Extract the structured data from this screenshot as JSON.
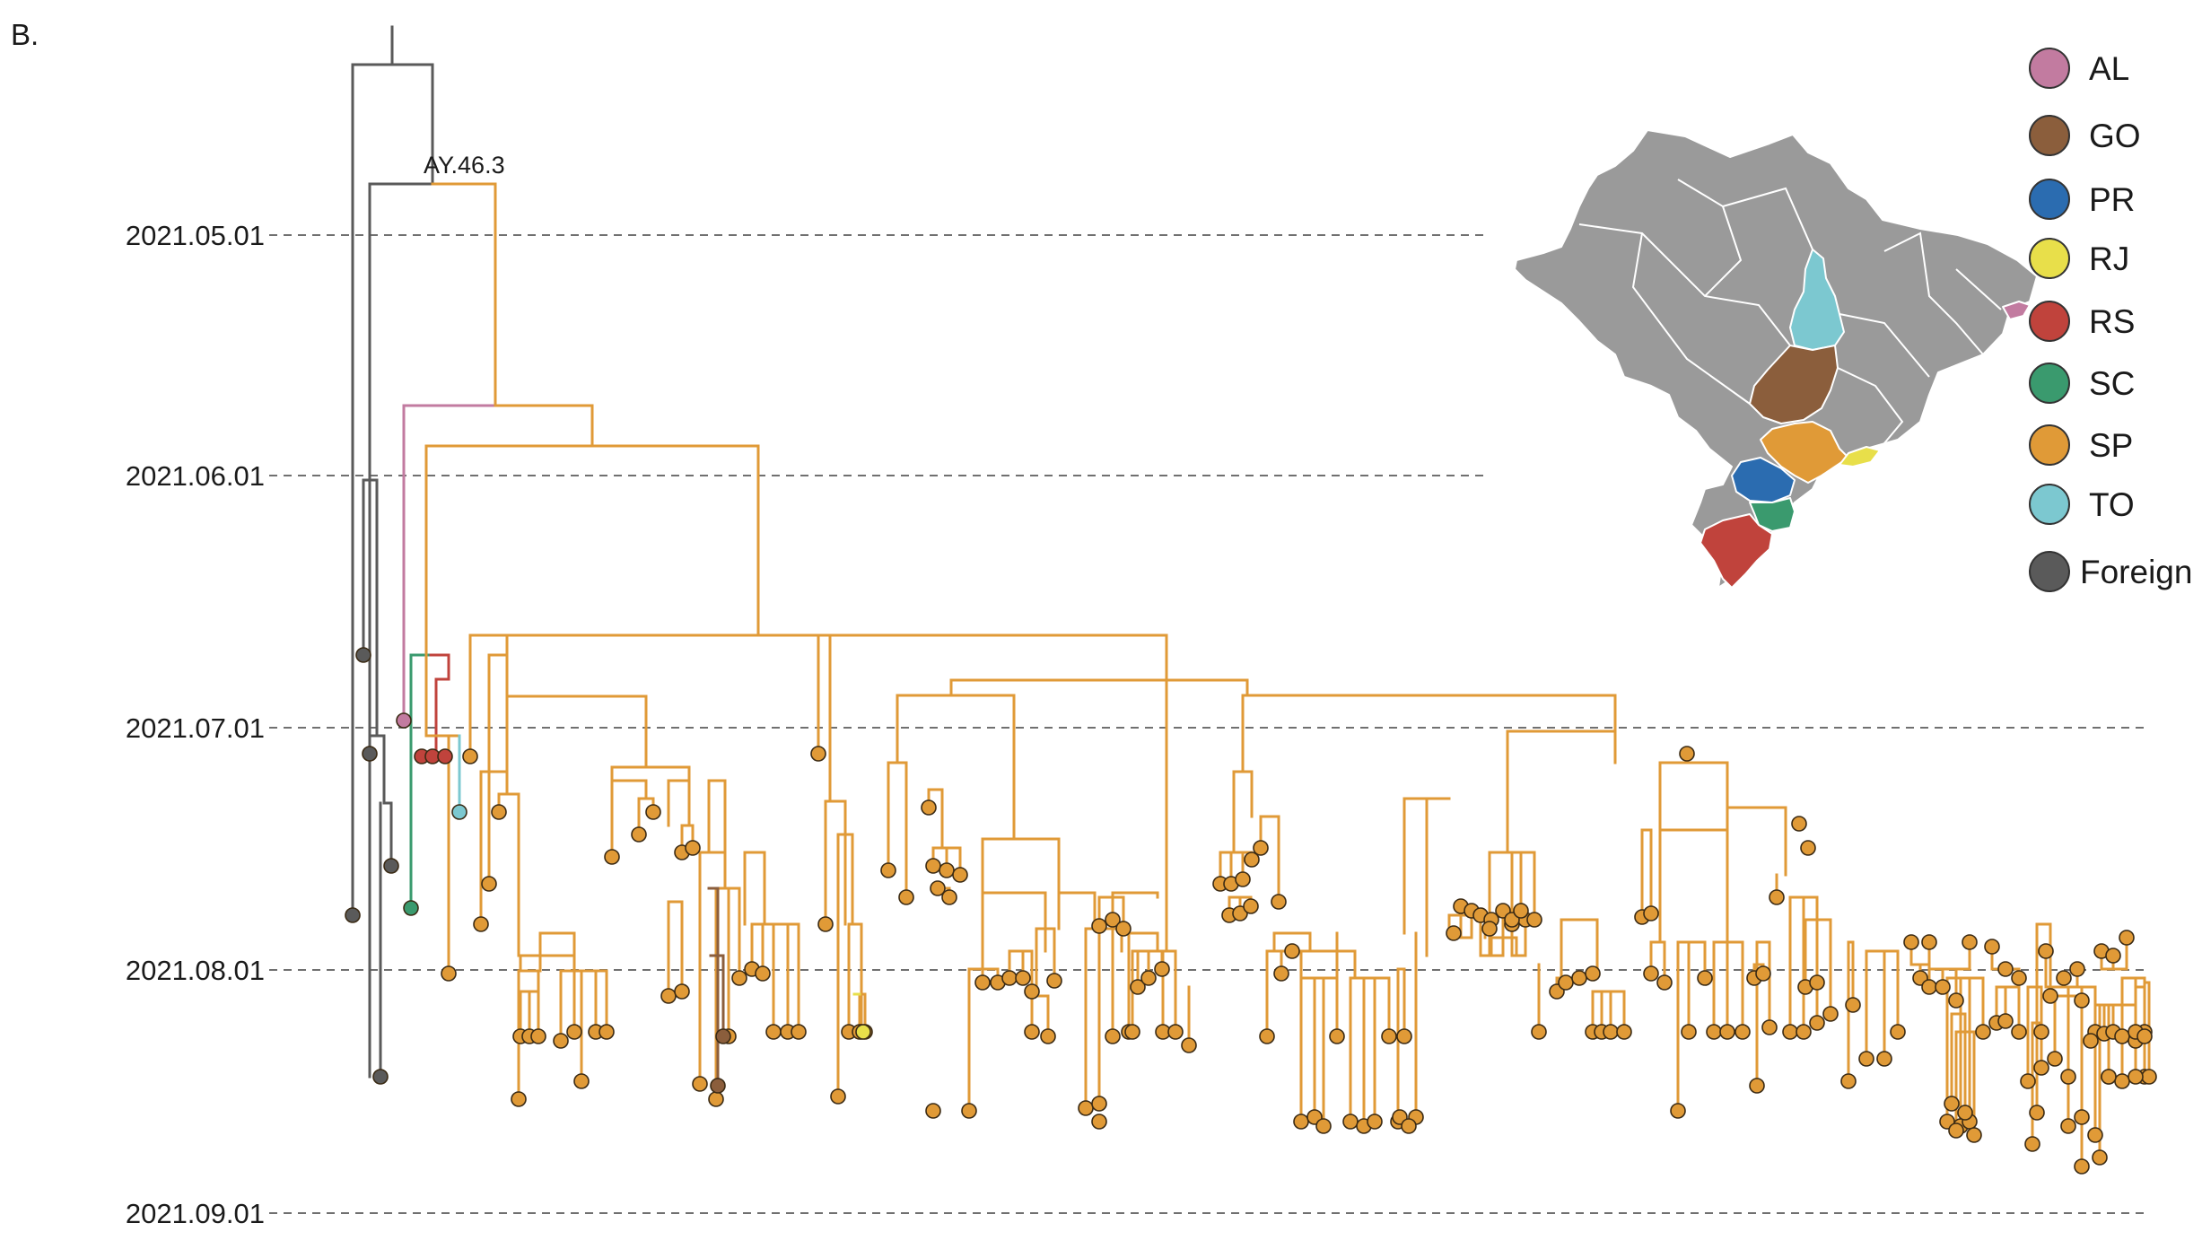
{
  "figure": {
    "panel_label": "B.",
    "clade_label": "AY.46.3"
  },
  "time_axis": {
    "dates": [
      "2021.05.01",
      "2021.06.01",
      "2021.07.01",
      "2021.08.01",
      "2021.09.01"
    ]
  },
  "legend": {
    "entries": [
      {
        "code": "AL",
        "color": "#c27ba0"
      },
      {
        "code": "GO",
        "color": "#8b5e3c"
      },
      {
        "code": "PR",
        "color": "#2b6cb0"
      },
      {
        "code": "RJ",
        "color": "#e8df4a"
      },
      {
        "code": "RS",
        "color": "#c0433c"
      },
      {
        "code": "SC",
        "color": "#3a9a6e"
      },
      {
        "code": "SP",
        "color": "#e09a37"
      },
      {
        "code": "TO",
        "color": "#7cc8d0"
      },
      {
        "code": "Foreign",
        "color": "#5a5a5a"
      }
    ]
  },
  "map": {
    "base_color": "#9a9a9a",
    "highlighted_states": [
      "AL",
      "TO",
      "GO",
      "SP",
      "RJ",
      "PR",
      "SC",
      "RS"
    ]
  },
  "tree": {
    "main_color": "#e09a37",
    "foreign_color": "#5a5a5a"
  }
}
